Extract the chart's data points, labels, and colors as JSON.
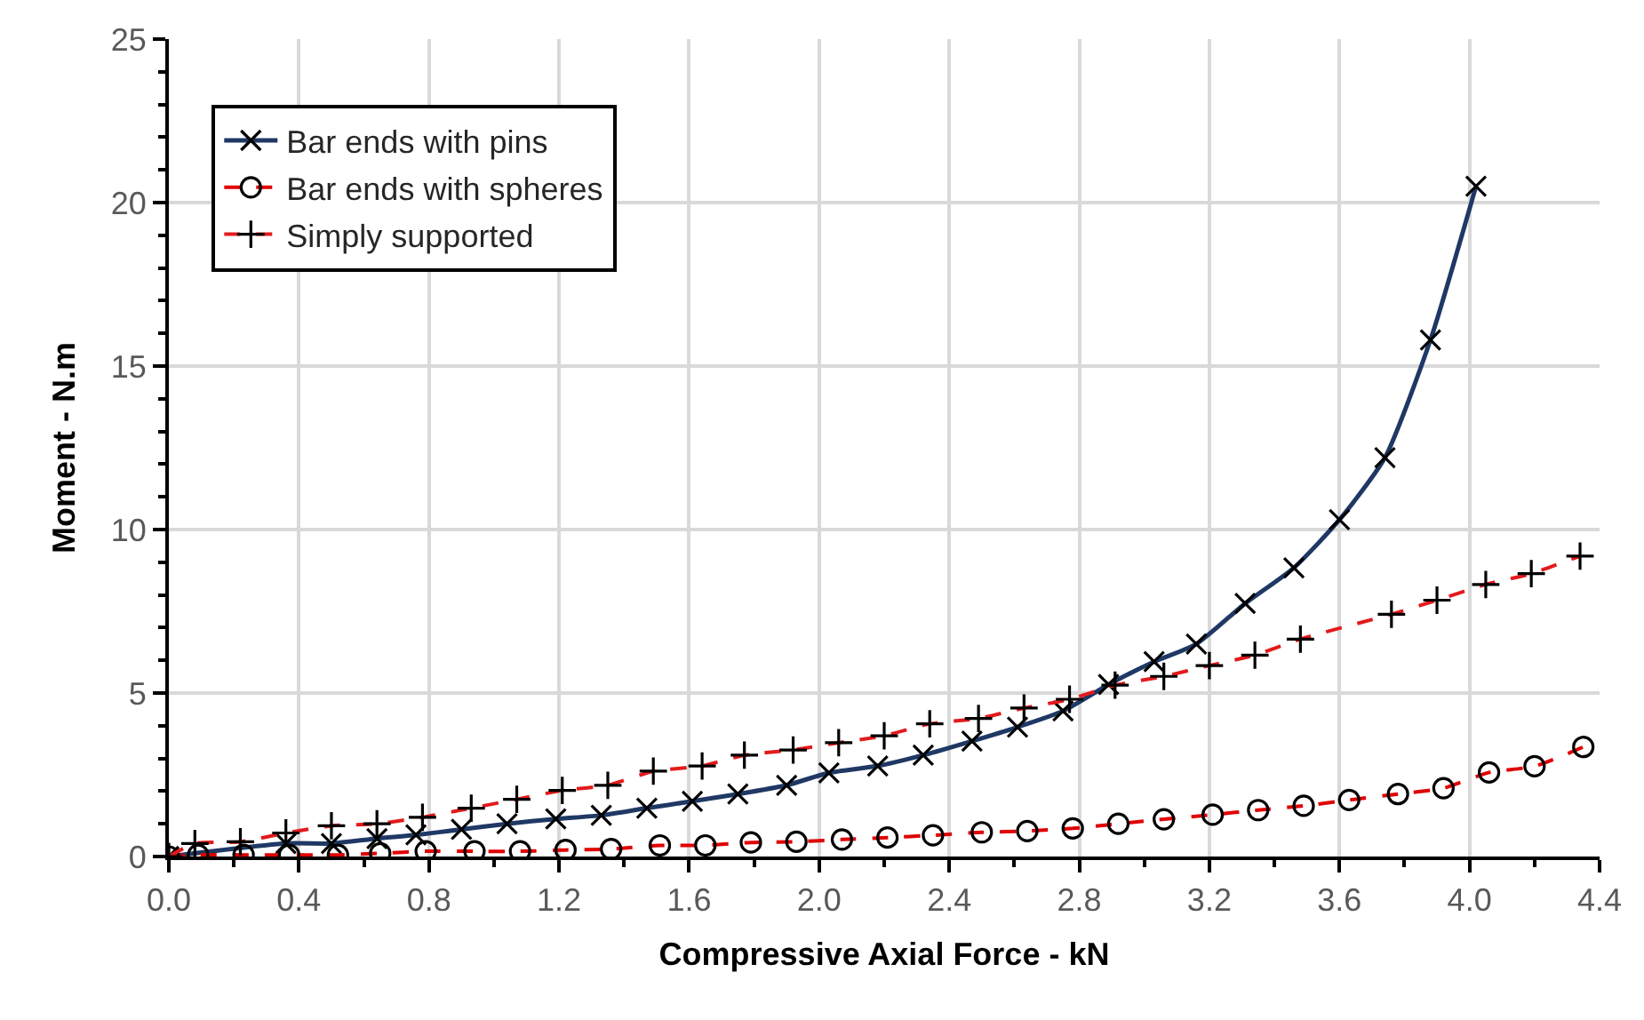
{
  "chart_data": {
    "type": "line",
    "xlabel": "Compressive Axial Force - kN",
    "ylabel": "Moment - N.m",
    "xlim": [
      0,
      4.4
    ],
    "xticks": [
      {
        "value": 0,
        "label": "0.0"
      },
      0.4,
      0.8,
      1.2,
      1.6,
      {
        "value": 2,
        "label": "2.0"
      },
      2.4,
      2.8,
      3.2,
      3.6,
      {
        "value": 4,
        "label": "4.0"
      },
      4.4
    ],
    "ylim": [
      0,
      25
    ],
    "yticks": [
      0,
      5,
      10,
      15,
      20,
      25
    ],
    "grid": true,
    "legend": "top left",
    "series": [
      {
        "name": "Bar ends with pins",
        "color": "#1f3864",
        "marker": "x",
        "line_style": "solid",
        "x": [
          0,
          0.23,
          0.36,
          0.5,
          0.64,
          0.76,
          0.9,
          1.04,
          1.19,
          1.33,
          1.47,
          1.61,
          1.75,
          1.9,
          2.03,
          2.18,
          2.32,
          2.47,
          2.61,
          2.75,
          2.89,
          3.03,
          3.16,
          3.31,
          3.46,
          3.6,
          3.74,
          3.88,
          4.02
        ],
        "values": [
          0,
          null,
          0.4,
          0.4,
          0.55,
          0.66,
          0.83,
          1.0,
          1.15,
          1.26,
          1.48,
          1.69,
          1.91,
          2.18,
          2.56,
          2.77,
          3.1,
          3.53,
          3.96,
          4.45,
          5.26,
          5.96,
          6.5,
          7.74,
          8.83,
          10.3,
          12.2,
          15.8,
          20.5
        ]
      },
      {
        "name": "Bar ends with spheres",
        "color": "#e00000",
        "marker": "circle",
        "line_style": "dashed",
        "x": [
          0,
          0.09,
          0.23,
          0.37,
          0.52,
          0.65,
          0.79,
          0.94,
          1.08,
          1.22,
          1.36,
          1.51,
          1.65,
          1.79,
          1.93,
          2.07,
          2.21,
          2.35,
          2.5,
          2.64,
          2.78,
          2.92,
          3.06,
          3.21,
          3.35,
          3.49,
          3.63,
          3.78,
          3.92,
          4.06,
          4.2,
          4.35
        ],
        "values": [
          0,
          0.05,
          0.05,
          0.05,
          0.05,
          0.1,
          0.16,
          0.16,
          0.16,
          0.2,
          0.23,
          0.34,
          0.34,
          0.43,
          0.45,
          0.52,
          0.58,
          0.65,
          0.74,
          0.78,
          0.86,
          1.0,
          1.14,
          1.28,
          1.42,
          1.55,
          1.73,
          1.91,
          2.09,
          2.57,
          2.76,
          3.35
        ]
      },
      {
        "name": "Simply supported",
        "color": "#e31a1c",
        "marker": "cross",
        "line_style": "dashed",
        "x": [
          0,
          0.08,
          0.22,
          0.36,
          0.5,
          0.64,
          0.78,
          0.93,
          1.07,
          1.21,
          1.35,
          1.49,
          1.64,
          1.77,
          1.92,
          2.06,
          2.2,
          2.34,
          2.49,
          2.63,
          2.77,
          2.91,
          3.06,
          3.2,
          3.34,
          3.48,
          3.76,
          3.9,
          4.05,
          4.19,
          4.34
        ],
        "values": [
          0,
          0.4,
          0.45,
          0.72,
          0.94,
          1.0,
          1.2,
          1.48,
          1.75,
          2.02,
          2.18,
          2.61,
          2.77,
          3.1,
          3.26,
          3.48,
          3.69,
          4.06,
          4.22,
          4.54,
          4.81,
          5.24,
          5.51,
          5.84,
          6.16,
          6.65,
          7.41,
          7.84,
          8.32,
          8.65,
          9.19
        ]
      }
    ]
  }
}
